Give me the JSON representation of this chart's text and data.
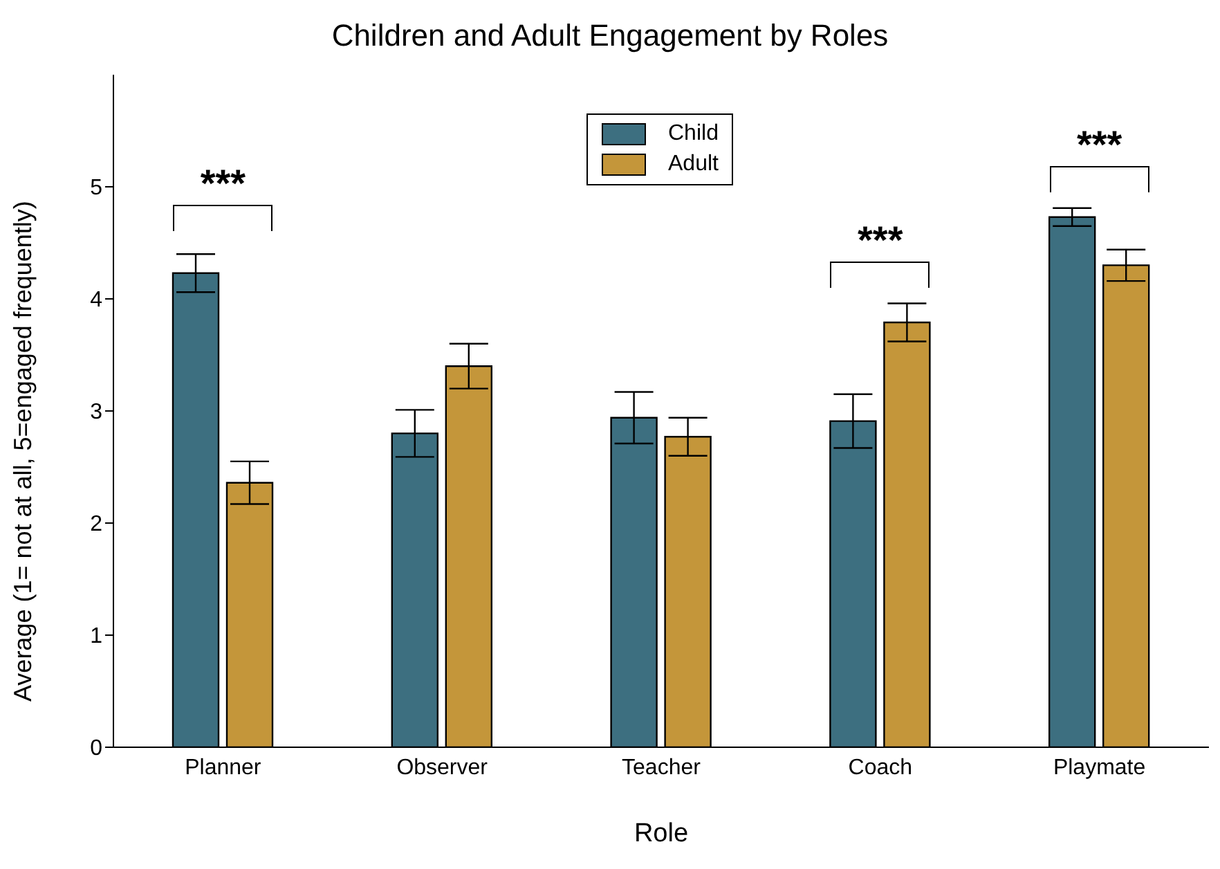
{
  "chart_data": {
    "type": "bar",
    "title": "Children and Adult Engagement by Roles",
    "xlabel": "Role",
    "ylabel": "Average (1= not at all, 5=engaged frequently)",
    "categories": [
      "Planner",
      "Observer",
      "Teacher",
      "Coach",
      "Playmate"
    ],
    "series": [
      {
        "name": "Child",
        "color": "#3d6f80",
        "values": [
          4.23,
          2.8,
          2.94,
          2.91,
          4.73
        ],
        "errors": [
          0.17,
          0.21,
          0.23,
          0.24,
          0.08
        ]
      },
      {
        "name": "Adult",
        "color": "#c4963a",
        "values": [
          2.36,
          3.4,
          2.77,
          3.79,
          4.3
        ],
        "errors": [
          0.19,
          0.2,
          0.17,
          0.17,
          0.14
        ]
      }
    ],
    "ylim": [
      0,
      6
    ],
    "yticks": [
      0,
      1,
      2,
      3,
      4,
      5
    ],
    "grid": false,
    "legend": "top",
    "annotations": [
      "***",
      "***",
      "***"
    ]
  }
}
